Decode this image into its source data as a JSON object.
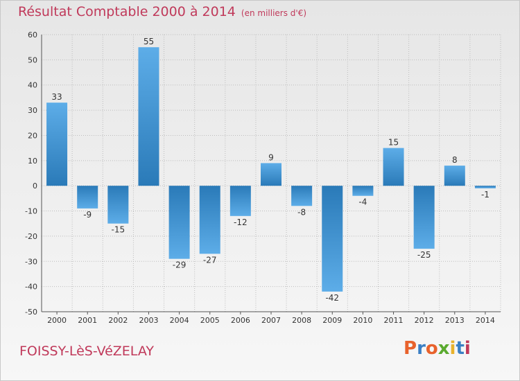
{
  "header": {
    "title": "Résultat Comptable 2000 à 2014",
    "subtitle": "(en milliers d'€)"
  },
  "footer": {
    "commune": "FOISSY-LèS-VéZELAY",
    "logo_text": "Proxiti",
    "logo_colors": [
      "#e8622c",
      "#3a7fc4",
      "#e8622c",
      "#5aaa2f",
      "#e8b22c",
      "#3a7fc4",
      "#c0395a"
    ]
  },
  "colors": {
    "title": "#c0395a",
    "bar_light": "#5dade8",
    "bar_dark": "#2a7ab8"
  },
  "chart_data": {
    "type": "bar",
    "categories": [
      "2000",
      "2001",
      "2002",
      "2003",
      "2004",
      "2005",
      "2006",
      "2007",
      "2008",
      "2009",
      "2010",
      "2011",
      "2012",
      "2013",
      "2014"
    ],
    "values": [
      33,
      -9,
      -15,
      55,
      -29,
      -27,
      -12,
      9,
      -8,
      -42,
      -4,
      15,
      -25,
      8,
      -1
    ],
    "ylim": [
      -50,
      60
    ],
    "yticks": [
      60,
      50,
      40,
      30,
      20,
      10,
      0,
      -10,
      -20,
      -30,
      -40,
      -50
    ],
    "grid": true
  }
}
